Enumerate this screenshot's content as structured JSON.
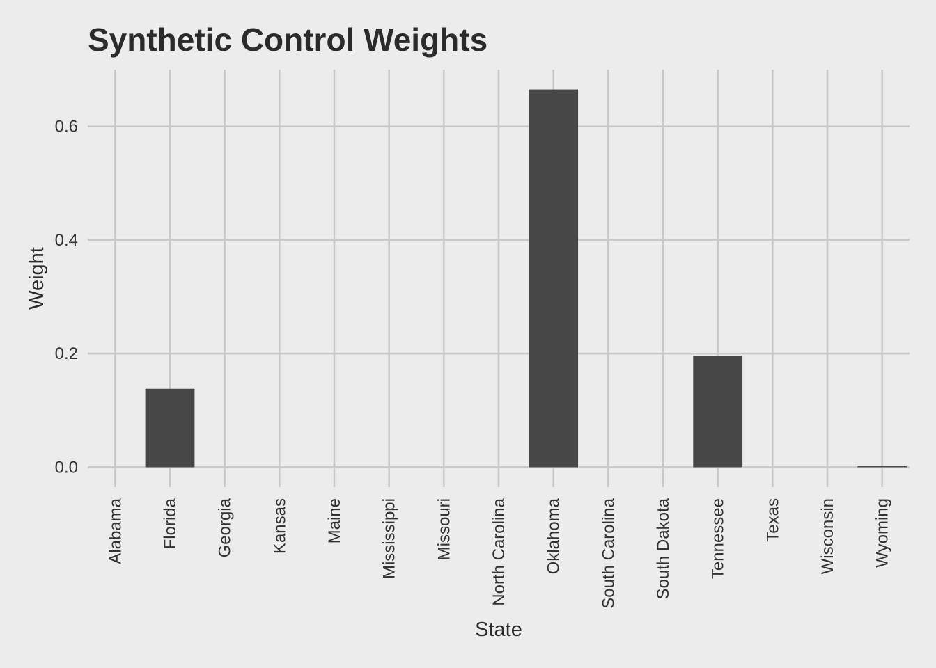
{
  "chart_data": {
    "type": "bar",
    "title": "Synthetic Control Weights",
    "xlabel": "State",
    "ylabel": "Weight",
    "categories": [
      "Alabama",
      "Florida",
      "Georgia",
      "Kansas",
      "Maine",
      "Mississippi",
      "Missouri",
      "North Carolina",
      "Oklahoma",
      "South Carolina",
      "South Dakota",
      "Tennessee",
      "Texas",
      "Wisconsin",
      "Wyoming"
    ],
    "values": [
      0,
      0.138,
      0,
      0,
      0,
      0,
      0,
      0,
      0.665,
      0,
      0,
      0.196,
      0,
      0,
      0.002
    ],
    "ylim": [
      -0.035,
      0.7
    ],
    "yticks": [
      0.0,
      0.2,
      0.4,
      0.6
    ],
    "ytick_labels": [
      "0.0",
      "0.2",
      "0.4",
      "0.6"
    ],
    "grid": true,
    "bar_color": "#474747",
    "background_color": "#ececec",
    "grid_color": "#c8c8c8"
  }
}
